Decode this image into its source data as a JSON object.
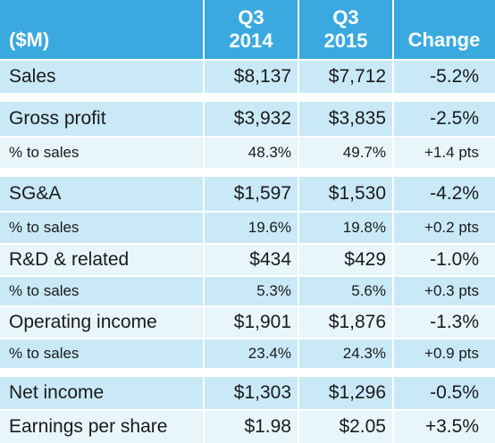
{
  "header": {
    "unit_label": "($M)",
    "col1_line1": "Q3",
    "col1_line2": "2014",
    "col2_line1": "Q3",
    "col2_line2": "2015",
    "col3": "Change"
  },
  "rows": [
    {
      "label": "Sales",
      "v2014": "$8,137",
      "v2015": "$7,712",
      "change": "-5.2%"
    },
    {
      "label": "Gross profit",
      "v2014": "$3,932",
      "v2015": "$3,835",
      "change": "-2.5%"
    },
    {
      "label": "% to sales",
      "v2014": "48.3%",
      "v2015": "49.7%",
      "change": "+1.4 pts"
    },
    {
      "label": "SG&A",
      "v2014": "$1,597",
      "v2015": "$1,530",
      "change": "-4.2%"
    },
    {
      "label": "% to sales",
      "v2014": "19.6%",
      "v2015": "19.8%",
      "change": "+0.2 pts"
    },
    {
      "label": "R&D & related",
      "v2014": "$434",
      "v2015": "$429",
      "change": "-1.0%"
    },
    {
      "label": "% to sales",
      "v2014": "5.3%",
      "v2015": "5.6%",
      "change": "+0.3 pts"
    },
    {
      "label": "Operating income",
      "v2014": "$1,901",
      "v2015": "$1,876",
      "change": "-1.3%"
    },
    {
      "label": "% to sales",
      "v2014": "23.4%",
      "v2015": "24.3%",
      "change": "+0.9 pts"
    },
    {
      "label": "Net income",
      "v2014": "$1,303",
      "v2015": "$1,296",
      "change": "-0.5%"
    },
    {
      "label": "Earnings per share",
      "v2014": "$1.98",
      "v2015": "$2.05",
      "change": "+3.5%"
    }
  ],
  "colors": {
    "header": "#3aa9e0",
    "row_dark": "#c9e9f7",
    "row_light": "#e8f5fb"
  }
}
